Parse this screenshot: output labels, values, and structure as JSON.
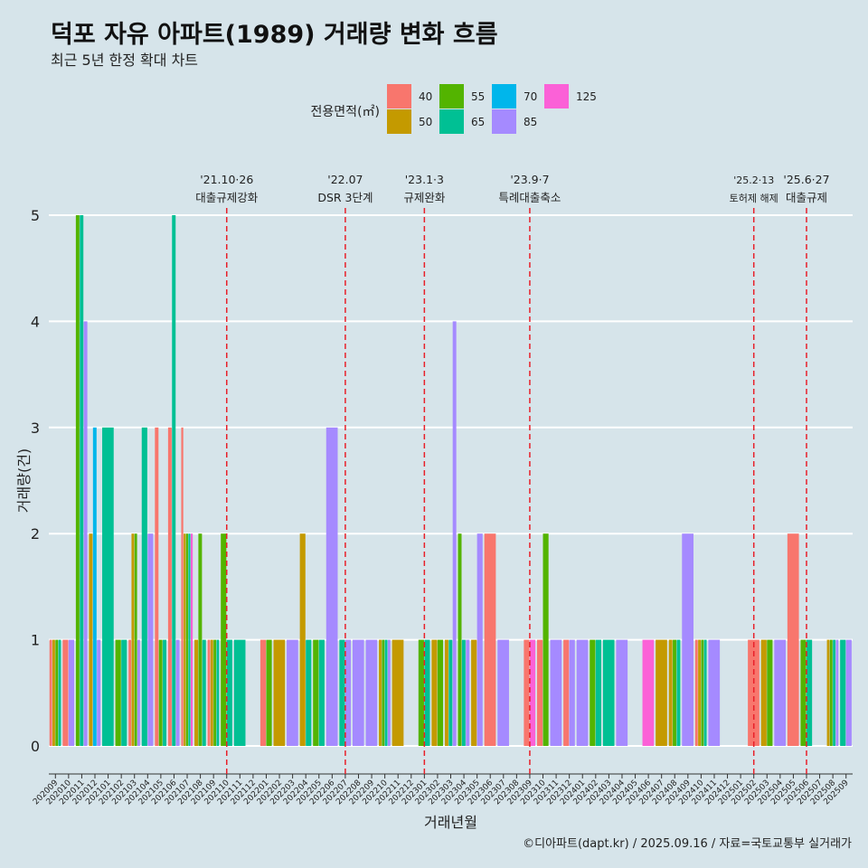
{
  "title": "덕포 자유 아파트(1989) 거래량 변화 흐름",
  "subtitle": "최근 5년 한정 확대 차트",
  "caption": "©디아파트(dapt.kr) / 2025.09.16 / 자료=국토교통부 실거래가",
  "chart_data": {
    "type": "bar",
    "xlabel": "거래년월",
    "ylabel": "거래량(건)",
    "ylim": [
      0,
      5
    ],
    "yticks": [
      0,
      1,
      2,
      3,
      4,
      5
    ],
    "legend": {
      "title": "전용면적(㎡)",
      "placement": "top",
      "entries": [
        {
          "label": "40",
          "color": "#F8766D"
        },
        {
          "label": "50",
          "color": "#C49A00"
        },
        {
          "label": "55",
          "color": "#53B400"
        },
        {
          "label": "65",
          "color": "#00C094"
        },
        {
          "label": "70",
          "color": "#00B6EB"
        },
        {
          "label": "85",
          "color": "#A58AFF"
        },
        {
          "label": "125",
          "color": "#FB61D7"
        }
      ]
    },
    "months": [
      "202009",
      "202010",
      "202011",
      "202012",
      "202101",
      "202102",
      "202103",
      "202104",
      "202105",
      "202106",
      "202107",
      "202108",
      "202109",
      "202110",
      "202111",
      "202112",
      "202201",
      "202202",
      "202203",
      "202204",
      "202205",
      "202206",
      "202207",
      "202208",
      "202209",
      "202210",
      "202211",
      "202212",
      "202301",
      "202302",
      "202303",
      "202304",
      "202305",
      "202306",
      "202307",
      "202308",
      "202309",
      "202310",
      "202311",
      "202312",
      "202401",
      "202402",
      "202403",
      "202404",
      "202405",
      "202406",
      "202407",
      "202408",
      "202409",
      "202410",
      "202411",
      "202412",
      "202501",
      "202502",
      "202503",
      "202504",
      "202505",
      "202506",
      "202507",
      "202508",
      "202509"
    ],
    "bars": [
      {
        "month": "202009",
        "values": {
          "40": 1,
          "50": 1,
          "55": 1,
          "65": 1
        }
      },
      {
        "month": "202010",
        "values": {
          "40": 1,
          "85": 1
        }
      },
      {
        "month": "202011",
        "values": {
          "55": 5,
          "65": 5,
          "85": 4
        }
      },
      {
        "month": "202012",
        "values": {
          "50": 2,
          "70": 3,
          "85": 1
        }
      },
      {
        "month": "202101",
        "values": {
          "65": 3
        }
      },
      {
        "month": "202102",
        "values": {
          "55": 1,
          "65": 1
        }
      },
      {
        "month": "202103",
        "values": {
          "40": 1,
          "50": 2,
          "55": 2,
          "85": 1
        }
      },
      {
        "month": "202104",
        "values": {
          "65": 3,
          "85": 2
        }
      },
      {
        "month": "202105",
        "values": {
          "40": 3,
          "55": 1,
          "65": 1
        }
      },
      {
        "month": "202106",
        "values": {
          "40": 3,
          "65": 5,
          "85": 1
        }
      },
      {
        "month": "202107",
        "values": {
          "40": 3,
          "50": 2,
          "55": 2,
          "65": 2,
          "125": 2
        }
      },
      {
        "month": "202108",
        "values": {
          "50": 1,
          "55": 2,
          "65": 1
        }
      },
      {
        "month": "202109",
        "values": {
          "40": 1,
          "50": 1,
          "55": 1,
          "65": 1
        }
      },
      {
        "month": "202110",
        "values": {
          "55": 2,
          "65": 1
        }
      },
      {
        "month": "202111",
        "values": {
          "65": 1
        }
      },
      {
        "month": "202112",
        "values": {}
      },
      {
        "month": "202201",
        "values": {
          "40": 1,
          "55": 1
        }
      },
      {
        "month": "202202",
        "values": {
          "50": 1
        }
      },
      {
        "month": "202203",
        "values": {
          "85": 1
        }
      },
      {
        "month": "202204",
        "values": {
          "50": 2,
          "65": 1
        }
      },
      {
        "month": "202205",
        "values": {
          "55": 1,
          "65": 1
        }
      },
      {
        "month": "202206",
        "values": {
          "85": 3
        }
      },
      {
        "month": "202207",
        "values": {
          "65": 1,
          "85": 1
        }
      },
      {
        "month": "202208",
        "values": {
          "85": 1
        }
      },
      {
        "month": "202209",
        "values": {
          "85": 1
        }
      },
      {
        "month": "202210",
        "values": {
          "50": 1,
          "55": 1,
          "65": 1,
          "85": 1
        }
      },
      {
        "month": "202211",
        "values": {
          "50": 1
        }
      },
      {
        "month": "202212",
        "values": {}
      },
      {
        "month": "202301",
        "values": {
          "55": 1,
          "65": 1
        }
      },
      {
        "month": "202302",
        "values": {
          "50": 1,
          "55": 1
        }
      },
      {
        "month": "202303",
        "values": {
          "50": 1,
          "65": 1,
          "85": 4
        }
      },
      {
        "month": "202304",
        "values": {
          "55": 2,
          "65": 1,
          "85": 1
        }
      },
      {
        "month": "202305",
        "values": {
          "50": 1,
          "85": 2
        }
      },
      {
        "month": "202306",
        "values": {
          "40": 2
        }
      },
      {
        "month": "202307",
        "values": {
          "85": 1
        }
      },
      {
        "month": "202308",
        "values": {}
      },
      {
        "month": "202309",
        "values": {
          "40": 1,
          "125": 1
        }
      },
      {
        "month": "202310",
        "values": {
          "40": 1,
          "55": 2
        }
      },
      {
        "month": "202311",
        "values": {
          "85": 1
        }
      },
      {
        "month": "202312",
        "values": {
          "40": 1,
          "85": 1
        }
      },
      {
        "month": "202401",
        "values": {
          "85": 1
        }
      },
      {
        "month": "202402",
        "values": {
          "55": 1,
          "65": 1
        }
      },
      {
        "month": "202403",
        "values": {
          "65": 1
        }
      },
      {
        "month": "202404",
        "values": {
          "85": 1
        }
      },
      {
        "month": "202405",
        "values": {}
      },
      {
        "month": "202406",
        "values": {
          "125": 1
        }
      },
      {
        "month": "202407",
        "values": {
          "50": 1
        }
      },
      {
        "month": "202408",
        "values": {
          "50": 1,
          "55": 1,
          "65": 1
        }
      },
      {
        "month": "202409",
        "values": {
          "85": 2
        }
      },
      {
        "month": "202410",
        "values": {
          "40": 1,
          "50": 1,
          "55": 1,
          "65": 1
        }
      },
      {
        "month": "202411",
        "values": {
          "85": 1
        }
      },
      {
        "month": "202412",
        "values": {}
      },
      {
        "month": "202501",
        "values": {}
      },
      {
        "month": "202502",
        "values": {
          "40": 1
        }
      },
      {
        "month": "202503",
        "values": {
          "50": 1,
          "55": 1
        }
      },
      {
        "month": "202504",
        "values": {
          "85": 1
        }
      },
      {
        "month": "202505",
        "values": {
          "40": 2
        }
      },
      {
        "month": "202506",
        "values": {
          "55": 1,
          "65": 1
        }
      },
      {
        "month": "202507",
        "values": {}
      },
      {
        "month": "202508",
        "values": {
          "50": 1,
          "55": 1,
          "65": 1,
          "85": 1
        }
      },
      {
        "month": "202509",
        "values": {
          "65": 1,
          "85": 1
        }
      }
    ],
    "events": [
      {
        "month": "202110",
        "date": "'21.10·26",
        "label": "대출규제강화"
      },
      {
        "month": "202207",
        "date": "'22.07",
        "label": "DSR 3단계"
      },
      {
        "month": "202301",
        "date": "'23.1·3",
        "label": "규제완화"
      },
      {
        "month": "202309",
        "date": "'23.9·7",
        "label": "특례대출축소"
      },
      {
        "month": "202502",
        "date": "'25.2·13",
        "label": "토허제 해제"
      },
      {
        "month": "202506",
        "date": "'25.6·27",
        "label": "대출규제"
      }
    ]
  }
}
